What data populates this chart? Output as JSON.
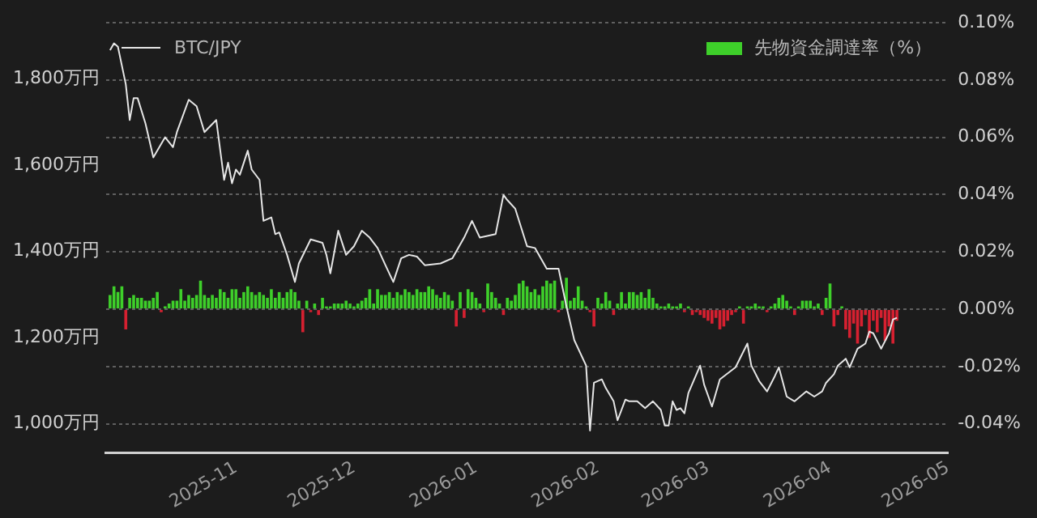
{
  "chart_data": {
    "type": "line",
    "legend": "top",
    "grid": "y",
    "xlim": [
      "2025-09-29",
      "2026-05-01"
    ],
    "xticks": [
      "2025-11",
      "2025-12",
      "2026-01",
      "2026-02",
      "2026-03",
      "2026-04",
      "2026-05"
    ],
    "ylim": [
      933,
      1931
    ],
    "yticks": [
      {
        "value": 1000,
        "label": "1,000万円"
      },
      {
        "value": 1200,
        "label": "1,200万円"
      },
      {
        "value": 1400,
        "label": "1,400万円"
      },
      {
        "value": 1600,
        "label": "1,600万円"
      },
      {
        "value": 1800,
        "label": "1,800万円"
      }
    ],
    "y2lim": [
      -0.05,
      0.1
    ],
    "y2ticks": [
      {
        "value": -0.04,
        "label": "-0.04%"
      },
      {
        "value": -0.02,
        "label": "-0.02%"
      },
      {
        "value": 0,
        "label": "0.00%"
      },
      {
        "value": 0.02,
        "label": "0.02%"
      },
      {
        "value": 0.04,
        "label": "0.04%"
      },
      {
        "value": 0.06,
        "label": "0.06%"
      },
      {
        "value": 0.08,
        "label": "0.08%"
      },
      {
        "value": 0.1,
        "label": "0.10%"
      }
    ],
    "series": [
      {
        "name": "BTC/JPY",
        "color": "#e6e6e6",
        "x": [
          "2025-09-30",
          "2025-10-01",
          "2025-10-02",
          "2025-10-04",
          "2025-10-05",
          "2025-10-06",
          "2025-10-07",
          "2025-10-09",
          "2025-10-11",
          "2025-10-14",
          "2025-10-16",
          "2025-10-17",
          "2025-10-20",
          "2025-10-22",
          "2025-10-24",
          "2025-10-27",
          "2025-10-29",
          "2025-10-30",
          "2025-10-31",
          "2025-11-01",
          "2025-11-02",
          "2025-11-04",
          "2025-11-05",
          "2025-11-07",
          "2025-11-08",
          "2025-11-10",
          "2025-11-11",
          "2025-11-12",
          "2025-11-14",
          "2025-11-16",
          "2025-11-17",
          "2025-11-20",
          "2025-11-23",
          "2025-11-24",
          "2025-11-25",
          "2025-11-27",
          "2025-11-29",
          "2025-12-01",
          "2025-12-03",
          "2025-12-05",
          "2025-12-07",
          "2025-12-09",
          "2025-12-11",
          "2025-12-13",
          "2025-12-15",
          "2025-12-17",
          "2025-12-19",
          "2025-12-23",
          "2025-12-26",
          "2025-12-29",
          "2025-12-31",
          "2026-01-02",
          "2026-01-06",
          "2026-01-08",
          "2026-01-09",
          "2026-01-11",
          "2026-01-14",
          "2026-01-16",
          "2026-01-19",
          "2026-01-22",
          "2026-01-24",
          "2026-01-26",
          "2026-01-29",
          "2026-01-30",
          "2026-01-31",
          "2026-02-02",
          "2026-02-03",
          "2026-02-05",
          "2026-02-06",
          "2026-02-08",
          "2026-02-09",
          "2026-02-11",
          "2026-02-13",
          "2026-02-15",
          "2026-02-17",
          "2026-02-18",
          "2026-02-19",
          "2026-02-20",
          "2026-02-21",
          "2026-02-22",
          "2026-02-23",
          "2026-02-24",
          "2026-02-27",
          "2026-02-28",
          "2026-03-02",
          "2026-03-04",
          "2026-03-08",
          "2026-03-11",
          "2026-03-12",
          "2026-03-14",
          "2026-03-16",
          "2026-03-18",
          "2026-03-19",
          "2026-03-21",
          "2026-03-23",
          "2026-03-26",
          "2026-03-28",
          "2026-03-30",
          "2026-03-31",
          "2026-04-02",
          "2026-04-03",
          "2026-04-05",
          "2026-04-06",
          "2026-04-08",
          "2026-04-10",
          "2026-04-11",
          "2026-04-12",
          "2026-04-14",
          "2026-04-16",
          "2026-04-17",
          "2026-04-18"
        ],
        "values": [
          1867,
          1883,
          1875,
          1788,
          1705,
          1756,
          1756,
          1697,
          1618,
          1665,
          1642,
          1677,
          1752,
          1737,
          1677,
          1705,
          1566,
          1606,
          1558,
          1590,
          1578,
          1634,
          1590,
          1566,
          1471,
          1479,
          1440,
          1444,
          1392,
          1329,
          1372,
          1428,
          1420,
          1392,
          1349,
          1448,
          1392,
          1412,
          1448,
          1432,
          1408,
          1368,
          1329,
          1384,
          1392,
          1388,
          1368,
          1372,
          1384,
          1432,
          1471,
          1432,
          1440,
          1531,
          1519,
          1499,
          1412,
          1408,
          1360,
          1360,
          1273,
          1194,
          1135,
          984,
          1095,
          1103,
          1083,
          1052,
          1008,
          1056,
          1052,
          1052,
          1036,
          1052,
          1032,
          996,
          996,
          1052,
          1032,
          1036,
          1024,
          1071,
          1135,
          1091,
          1040,
          1103,
          1131,
          1186,
          1135,
          1099,
          1075,
          1111,
          1131,
          1063,
          1052,
          1075,
          1063,
          1075,
          1095,
          1115,
          1135,
          1151,
          1131,
          1174,
          1186,
          1214,
          1210,
          1174,
          1210,
          1242,
          1246
        ]
      },
      {
        "name": "先物資金調達率（%）",
        "type": "bar",
        "axis": "y2",
        "color": "#3ecf2a",
        "x": [
          "2025-09-30",
          "2025-10-01",
          "2025-10-02",
          "2025-10-03",
          "2025-10-04",
          "2025-10-05",
          "2025-10-06",
          "2025-10-07",
          "2025-10-08",
          "2025-10-09",
          "2025-10-10",
          "2025-10-11",
          "2025-10-12",
          "2025-10-13",
          "2025-10-14",
          "2025-10-15",
          "2025-10-16",
          "2025-10-17",
          "2025-10-18",
          "2025-10-19",
          "2025-10-20",
          "2025-10-21",
          "2025-10-22",
          "2025-10-23",
          "2025-10-24",
          "2025-10-25",
          "2025-10-26",
          "2025-10-27",
          "2025-10-28",
          "2025-10-29",
          "2025-10-30",
          "2025-10-31",
          "2025-11-01",
          "2025-11-02",
          "2025-11-03",
          "2025-11-04",
          "2025-11-05",
          "2025-11-06",
          "2025-11-07",
          "2025-11-08",
          "2025-11-09",
          "2025-11-10",
          "2025-11-11",
          "2025-11-12",
          "2025-11-13",
          "2025-11-14",
          "2025-11-15",
          "2025-11-16",
          "2025-11-17",
          "2025-11-18",
          "2025-11-19",
          "2025-11-20",
          "2025-11-21",
          "2025-11-22",
          "2025-11-23",
          "2025-11-24",
          "2025-11-25",
          "2025-11-26",
          "2025-11-27",
          "2025-11-28",
          "2025-11-29",
          "2025-11-30",
          "2025-12-01",
          "2025-12-02",
          "2025-12-03",
          "2025-12-04",
          "2025-12-05",
          "2025-12-06",
          "2025-12-07",
          "2025-12-08",
          "2025-12-09",
          "2025-12-10",
          "2025-12-11",
          "2025-12-12",
          "2025-12-13",
          "2025-12-14",
          "2025-12-15",
          "2025-12-16",
          "2025-12-17",
          "2025-12-18",
          "2025-12-19",
          "2025-12-20",
          "2025-12-21",
          "2025-12-22",
          "2025-12-23",
          "2025-12-24",
          "2025-12-25",
          "2025-12-26",
          "2025-12-27",
          "2025-12-28",
          "2025-12-29",
          "2025-12-30",
          "2025-12-31",
          "2026-01-01",
          "2026-01-02",
          "2026-01-03",
          "2026-01-04",
          "2026-01-05",
          "2026-01-06",
          "2026-01-07",
          "2026-01-08",
          "2026-01-09",
          "2026-01-10",
          "2026-01-11",
          "2026-01-12",
          "2026-01-13",
          "2026-01-14",
          "2026-01-15",
          "2026-01-16",
          "2026-01-17",
          "2026-01-18",
          "2026-01-19",
          "2026-01-20",
          "2026-01-21",
          "2026-01-22",
          "2026-01-23",
          "2026-01-24",
          "2026-01-25",
          "2026-01-26",
          "2026-01-27",
          "2026-01-28",
          "2026-01-29",
          "2026-01-30",
          "2026-01-31",
          "2026-02-01",
          "2026-02-02",
          "2026-02-03",
          "2026-02-04",
          "2026-02-05",
          "2026-02-06",
          "2026-02-07",
          "2026-02-08",
          "2026-02-09",
          "2026-02-10",
          "2026-02-11",
          "2026-02-12",
          "2026-02-13",
          "2026-02-14",
          "2026-02-15",
          "2026-02-16",
          "2026-02-17",
          "2026-02-18",
          "2026-02-19",
          "2026-02-20",
          "2026-02-21",
          "2026-02-22",
          "2026-02-23",
          "2026-02-24",
          "2026-02-25",
          "2026-02-26",
          "2026-02-27",
          "2026-02-28",
          "2026-03-01",
          "2026-03-02",
          "2026-03-03",
          "2026-03-04",
          "2026-03-05",
          "2026-03-06",
          "2026-03-07",
          "2026-03-08",
          "2026-03-09",
          "2026-03-10",
          "2026-03-11",
          "2026-03-12",
          "2026-03-13",
          "2026-03-14",
          "2026-03-15",
          "2026-03-16",
          "2026-03-17",
          "2026-03-18",
          "2026-03-19",
          "2026-03-20",
          "2026-03-21",
          "2026-03-22",
          "2026-03-23",
          "2026-03-24",
          "2026-03-25",
          "2026-03-26",
          "2026-03-27",
          "2026-03-28",
          "2026-03-29",
          "2026-03-30",
          "2026-03-31",
          "2026-04-01",
          "2026-04-02",
          "2026-04-03",
          "2026-04-04",
          "2026-04-05",
          "2026-04-06",
          "2026-04-07",
          "2026-04-08",
          "2026-04-09",
          "2026-04-10",
          "2026-04-11",
          "2026-04-12",
          "2026-04-13",
          "2026-04-14",
          "2026-04-15",
          "2026-04-16",
          "2026-04-17",
          "2026-04-18"
        ],
        "values": [
          0.005,
          0.008,
          0.006,
          0.008,
          -0.007,
          0.004,
          0.005,
          0.004,
          0.004,
          0.003,
          0.003,
          0.004,
          0.006,
          -0.001,
          0.001,
          0.002,
          0.003,
          0.003,
          0.007,
          0.003,
          0.005,
          0.004,
          0.005,
          0.01,
          0.005,
          0.004,
          0.005,
          0.004,
          0.007,
          0.006,
          0.004,
          0.007,
          0.007,
          0.004,
          0.006,
          0.008,
          0.006,
          0.005,
          0.006,
          0.005,
          0.004,
          0.007,
          0.004,
          0.006,
          0.004,
          0.006,
          0.007,
          0.006,
          0.003,
          -0.008,
          0.003,
          -0.001,
          0.002,
          -0.002,
          0.004,
          0.001,
          0.001,
          0.002,
          0.002,
          0.002,
          0.003,
          0.002,
          0.001,
          0.002,
          0.003,
          0.004,
          0.007,
          0.002,
          0.007,
          0.005,
          0.005,
          0.006,
          0.004,
          0.006,
          0.005,
          0.007,
          0.006,
          0.005,
          0.007,
          0.006,
          0.006,
          0.008,
          0.007,
          0.005,
          0.004,
          0.006,
          0.005,
          0.003,
          -0.006,
          0.006,
          -0.003,
          0.007,
          0.006,
          0.004,
          0.002,
          -0.001,
          0.009,
          0.006,
          0.004,
          0.002,
          -0.002,
          0.004,
          0.003,
          0.005,
          0.009,
          0.01,
          0.008,
          0.006,
          0.007,
          0.005,
          0.008,
          0.01,
          0.009,
          0.01,
          -0.001,
          0.003,
          0.011,
          0.003,
          0.004,
          0.008,
          0.003,
          0.001,
          -0.001,
          -0.006,
          0.004,
          0.002,
          0.006,
          0.003,
          -0.002,
          0.002,
          0.006,
          0.002,
          0.006,
          0.006,
          0.005,
          0.006,
          0.004,
          0.007,
          0.004,
          0.002,
          0.001,
          0.001,
          0.002,
          0.001,
          0.001,
          0.002,
          -0.001,
          0.001,
          -0.002,
          -0.001,
          -0.002,
          -0.003,
          -0.004,
          -0.005,
          -0.003,
          -0.007,
          -0.006,
          -0.004,
          -0.002,
          -0.001,
          0.001,
          -0.005,
          0.001,
          0.001,
          0.002,
          0.001,
          0.001,
          -0.001,
          0.001,
          0.002,
          0.004,
          0.005,
          0.003,
          0.001,
          -0.002,
          0.001,
          0.003,
          0.003,
          0.003,
          0.001,
          0.002,
          -0.002,
          0.004,
          0.009,
          -0.006,
          -0.002,
          0.001,
          -0.007,
          -0.01,
          -0.005,
          -0.012,
          -0.006,
          -0.002,
          -0.01,
          -0.004,
          -0.008,
          -0.003,
          -0.011,
          -0.006,
          -0.012,
          -0.004
        ],
        "colors": [
          "#3ecf2a",
          "#3ecf2a",
          "#3ecf2a",
          "#3ecf2a",
          "#d62030",
          "#3ecf2a",
          "#3ecf2a",
          "#3ecf2a",
          "#3ecf2a",
          "#3ecf2a",
          "#3ecf2a",
          "#3ecf2a",
          "#3ecf2a",
          "#d62030",
          "#3ecf2a",
          "#3ecf2a",
          "#3ecf2a",
          "#3ecf2a",
          "#3ecf2a",
          "#3ecf2a",
          "#3ecf2a",
          "#3ecf2a",
          "#3ecf2a",
          "#3ecf2a",
          "#3ecf2a",
          "#3ecf2a",
          "#3ecf2a",
          "#3ecf2a",
          "#3ecf2a",
          "#3ecf2a",
          "#3ecf2a",
          "#3ecf2a",
          "#3ecf2a",
          "#3ecf2a",
          "#3ecf2a",
          "#3ecf2a",
          "#3ecf2a",
          "#3ecf2a",
          "#3ecf2a",
          "#3ecf2a",
          "#3ecf2a",
          "#3ecf2a",
          "#3ecf2a",
          "#3ecf2a",
          "#3ecf2a",
          "#3ecf2a",
          "#3ecf2a",
          "#3ecf2a",
          "#3ecf2a",
          "#d62030",
          "#3ecf2a",
          "#d62030",
          "#3ecf2a",
          "#d62030",
          "#3ecf2a",
          "#3ecf2a",
          "#3ecf2a",
          "#3ecf2a",
          "#3ecf2a",
          "#3ecf2a",
          "#3ecf2a",
          "#3ecf2a",
          "#3ecf2a",
          "#3ecf2a",
          "#3ecf2a",
          "#3ecf2a",
          "#3ecf2a",
          "#3ecf2a",
          "#3ecf2a",
          "#3ecf2a",
          "#3ecf2a",
          "#3ecf2a",
          "#3ecf2a",
          "#3ecf2a",
          "#3ecf2a",
          "#3ecf2a",
          "#3ecf2a",
          "#3ecf2a",
          "#3ecf2a",
          "#3ecf2a",
          "#3ecf2a",
          "#3ecf2a",
          "#3ecf2a",
          "#3ecf2a",
          "#3ecf2a",
          "#3ecf2a",
          "#3ecf2a",
          "#3ecf2a",
          "#d62030",
          "#3ecf2a",
          "#d62030",
          "#3ecf2a",
          "#3ecf2a",
          "#3ecf2a",
          "#3ecf2a",
          "#d62030",
          "#3ecf2a",
          "#3ecf2a",
          "#3ecf2a",
          "#3ecf2a",
          "#d62030",
          "#3ecf2a",
          "#3ecf2a",
          "#3ecf2a",
          "#3ecf2a",
          "#3ecf2a",
          "#3ecf2a",
          "#3ecf2a",
          "#3ecf2a",
          "#3ecf2a",
          "#3ecf2a",
          "#3ecf2a",
          "#3ecf2a",
          "#3ecf2a",
          "#d62030",
          "#3ecf2a",
          "#3ecf2a",
          "#3ecf2a",
          "#3ecf2a",
          "#3ecf2a",
          "#3ecf2a",
          "#3ecf2a",
          "#d62030",
          "#d62030",
          "#3ecf2a",
          "#3ecf2a",
          "#3ecf2a",
          "#3ecf2a",
          "#d62030",
          "#3ecf2a",
          "#3ecf2a",
          "#3ecf2a",
          "#3ecf2a",
          "#3ecf2a",
          "#3ecf2a",
          "#3ecf2a",
          "#3ecf2a",
          "#3ecf2a",
          "#3ecf2a",
          "#3ecf2a",
          "#3ecf2a",
          "#3ecf2a",
          "#3ecf2a",
          "#3ecf2a",
          "#3ecf2a",
          "#3ecf2a",
          "#d62030",
          "#3ecf2a",
          "#d62030",
          "#d62030",
          "#d62030",
          "#d62030",
          "#d62030",
          "#d62030",
          "#d62030",
          "#d62030",
          "#d62030",
          "#d62030",
          "#d62030",
          "#d62030",
          "#3ecf2a",
          "#d62030",
          "#3ecf2a",
          "#3ecf2a",
          "#3ecf2a",
          "#3ecf2a",
          "#3ecf2a",
          "#d62030",
          "#3ecf2a",
          "#3ecf2a",
          "#3ecf2a",
          "#3ecf2a",
          "#3ecf2a",
          "#3ecf2a",
          "#d62030",
          "#3ecf2a",
          "#3ecf2a",
          "#3ecf2a",
          "#3ecf2a",
          "#3ecf2a",
          "#3ecf2a",
          "#d62030",
          "#3ecf2a",
          "#3ecf2a",
          "#d62030",
          "#d62030",
          "#3ecf2a",
          "#d62030",
          "#d62030",
          "#d62030",
          "#d62030",
          "#d62030",
          "#d62030",
          "#d62030",
          "#d62030",
          "#d62030",
          "#d62030",
          "#d62030",
          "#d62030",
          "#d62030",
          "#d62030"
        ]
      }
    ]
  }
}
